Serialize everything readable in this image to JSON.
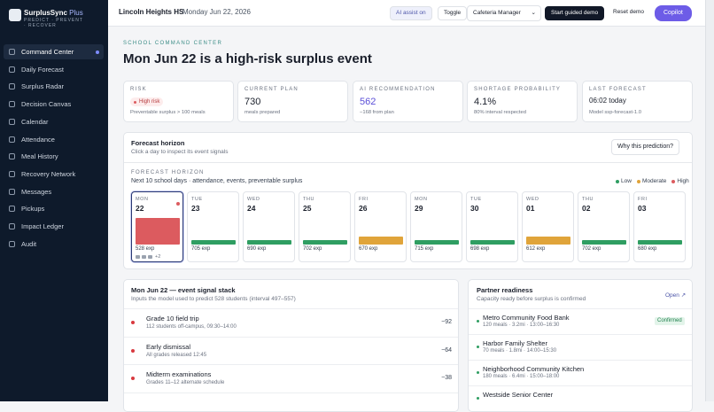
{
  "sidebar": {
    "brand": "SurplusSync",
    "brand_suffix": "Plus",
    "tagline": "PREDICT · PREVENT · RECOVER",
    "nav": [
      {
        "label": "Command Center",
        "active": true
      },
      {
        "label": "Daily Forecast"
      },
      {
        "label": "Surplus Radar"
      },
      {
        "label": "Decision Canvas"
      },
      {
        "label": "Calendar"
      },
      {
        "label": "Attendance"
      },
      {
        "label": "Meal History"
      },
      {
        "label": "Recovery Network"
      },
      {
        "label": "Messages"
      },
      {
        "label": "Pickups"
      },
      {
        "label": "Impact Ledger"
      },
      {
        "label": "Audit"
      }
    ]
  },
  "topbar": {
    "school": "Lincoln Heights HS",
    "date": "Monday Jun 22, 2026",
    "ai_assist": "AI assist on",
    "toggle": "Toggle",
    "role": "Cafeteria Manager",
    "guided_demo": "Start guided demo",
    "reset": "Reset demo",
    "copilot": "Copilot"
  },
  "header": {
    "eyebrow": "SCHOOL COMMAND CENTER",
    "title": "Mon Jun 22 is a high-risk surplus event"
  },
  "kpis": [
    {
      "label": "RISK",
      "badge": "High risk",
      "note": "Preventable surplus > 100 meals"
    },
    {
      "label": "CURRENT PLAN",
      "value": "730",
      "note": "meals prepared"
    },
    {
      "label": "AI RECOMMENDATION",
      "value": "562",
      "note": "−168 from plan",
      "accent": true
    },
    {
      "label": "SHORTAGE PROBABILITY",
      "value": "4.1%",
      "note": "80% interval respected"
    },
    {
      "label": "LAST FORECAST",
      "value": "06:02 today",
      "note": "Model ssp-forecast-1.0",
      "small": true
    }
  ],
  "forecast": {
    "title": "Forecast horizon",
    "subtitle": "Click a day to inspect its event signals",
    "why": "Why this prediction?",
    "eyebrow": "FORECAST HORIZON",
    "caption": "Next 10 school days · attendance, events, preventable surplus",
    "legend": [
      {
        "label": "Low",
        "color": "#2f9e62"
      },
      {
        "label": "Moderate",
        "color": "#e0a43a"
      },
      {
        "label": "High",
        "color": "#dc5b5f"
      }
    ],
    "days": [
      {
        "weekday": "MON",
        "day": "22",
        "expected": "528 exp",
        "risk": "High",
        "extra": "+2",
        "selected": true
      },
      {
        "weekday": "TUE",
        "day": "23",
        "expected": "705 exp",
        "risk": "Low"
      },
      {
        "weekday": "WED",
        "day": "24",
        "expected": "690 exp",
        "risk": "Low"
      },
      {
        "weekday": "THU",
        "day": "25",
        "expected": "702 exp",
        "risk": "Low"
      },
      {
        "weekday": "FRI",
        "day": "26",
        "expected": "670 exp",
        "risk": "Moderate"
      },
      {
        "weekday": "MON",
        "day": "29",
        "expected": "715 exp",
        "risk": "Low"
      },
      {
        "weekday": "TUE",
        "day": "30",
        "expected": "698 exp",
        "risk": "Low"
      },
      {
        "weekday": "WED",
        "day": "01",
        "expected": "612 exp",
        "risk": "Moderate"
      },
      {
        "weekday": "THU",
        "day": "02",
        "expected": "702 exp",
        "risk": "Low"
      },
      {
        "weekday": "FRI",
        "day": "03",
        "expected": "680 exp",
        "risk": "Low"
      }
    ]
  },
  "signals": {
    "title": "Mon Jun 22 — event signal stack",
    "subtitle": "Inputs the model used to predict 528 students (interval 497–557)",
    "rows": [
      {
        "name": "Grade 10 field trip",
        "detail": "112 students off-campus, 09:30–14:00",
        "impact": "−92"
      },
      {
        "name": "Early dismissal",
        "detail": "All grades released 12:45",
        "impact": "−64"
      },
      {
        "name": "Midterm examinations",
        "detail": "Grades 11–12 alternate schedule",
        "impact": "−38"
      }
    ]
  },
  "partners": {
    "title": "Partner readiness",
    "subtitle": "Capacity ready before surplus is confirmed",
    "open": "Open ↗",
    "rows": [
      {
        "name": "Metro Community Food Bank",
        "detail": "120 meals · 3.2mi · 13:00–16:30",
        "status": "Confirmed"
      },
      {
        "name": "Harbor Family Shelter",
        "detail": "70 meals · 1.8mi · 14:00–15:30"
      },
      {
        "name": "Neighborhood Community Kitchen",
        "detail": "180 meals · 6.4mi · 15:00–18:00"
      },
      {
        "name": "Westside Senior Center"
      }
    ]
  }
}
